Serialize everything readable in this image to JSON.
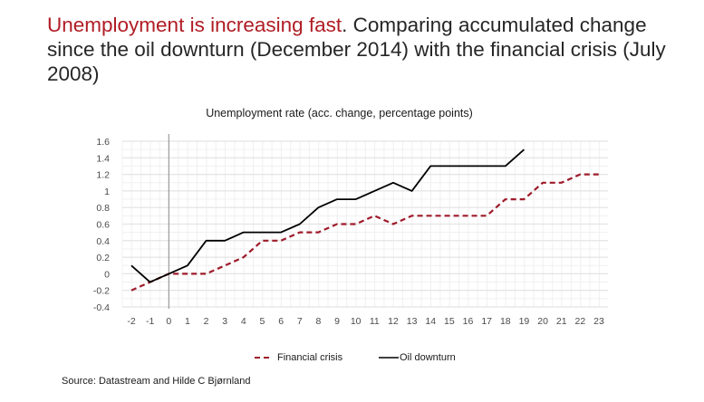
{
  "headline": {
    "accent": "Unemployment is increasing fast",
    "rest": ". Comparing accumulated change since the oil downturn (December 2014) with the financial crisis (July 2008)"
  },
  "colors": {
    "accent": "#b01c24",
    "financial_crisis": "#9e1b2a",
    "oil_downturn": "#000000",
    "grid": "#e4e4e4"
  },
  "source": "Source: Datastream and Hilde C Bjørnland",
  "chart_data": {
    "type": "line",
    "title": "Unemployment rate (acc. change, percentage points)",
    "xlabel": "",
    "ylabel": "",
    "x": [
      -2,
      -1,
      0,
      1,
      2,
      3,
      4,
      5,
      6,
      7,
      8,
      9,
      10,
      11,
      12,
      13,
      14,
      15,
      16,
      17,
      18,
      19,
      20,
      21,
      22,
      23
    ],
    "x_ticks": [
      "-2",
      "-1",
      "0",
      "1",
      "2",
      "3",
      "4",
      "5",
      "6",
      "7",
      "8",
      "9",
      "10",
      "11",
      "12",
      "13",
      "14",
      "15",
      "16",
      "17",
      "18",
      "19",
      "20",
      "21",
      "22",
      "23"
    ],
    "y_ticks": [
      "1.6",
      "1.4",
      "1.2",
      "1",
      "0.8",
      "0.6",
      "0.4",
      "0.2",
      "0",
      "-0.2",
      "-0.4"
    ],
    "y_tick_values": [
      1.6,
      1.4,
      1.2,
      1.0,
      0.8,
      0.6,
      0.4,
      0.2,
      0,
      -0.2,
      -0.4
    ],
    "ylim": [
      -0.4,
      1.6
    ],
    "xlim": [
      -2,
      23
    ],
    "grid": true,
    "vertical_reference_line_at_x": 0,
    "legend_position": "bottom",
    "series": [
      {
        "name": "Financial crisis",
        "style": "dashed",
        "x": [
          -2,
          -1,
          0,
          1,
          2,
          3,
          4,
          5,
          6,
          7,
          8,
          9,
          10,
          11,
          12,
          13,
          14,
          15,
          16,
          17,
          18,
          19,
          20,
          21,
          22,
          23
        ],
        "values": [
          -0.2,
          -0.1,
          0,
          0,
          0,
          0.1,
          0.2,
          0.4,
          0.4,
          0.5,
          0.5,
          0.6,
          0.6,
          0.7,
          0.6,
          0.7,
          0.7,
          0.7,
          0.7,
          0.7,
          0.9,
          0.9,
          1.1,
          1.1,
          1.2,
          1.2
        ]
      },
      {
        "name": "Oil downturn",
        "style": "solid",
        "x": [
          -2,
          -1,
          0,
          1,
          2,
          3,
          4,
          5,
          6,
          7,
          8,
          9,
          10,
          11,
          12,
          13,
          14,
          15,
          16,
          17,
          18,
          19
        ],
        "values": [
          0.1,
          -0.1,
          0,
          0.1,
          0.4,
          0.4,
          0.5,
          0.5,
          0.5,
          0.6,
          0.8,
          0.9,
          0.9,
          1.0,
          1.1,
          1.0,
          1.3,
          1.3,
          1.3,
          1.3,
          1.3,
          1.5
        ]
      }
    ]
  }
}
